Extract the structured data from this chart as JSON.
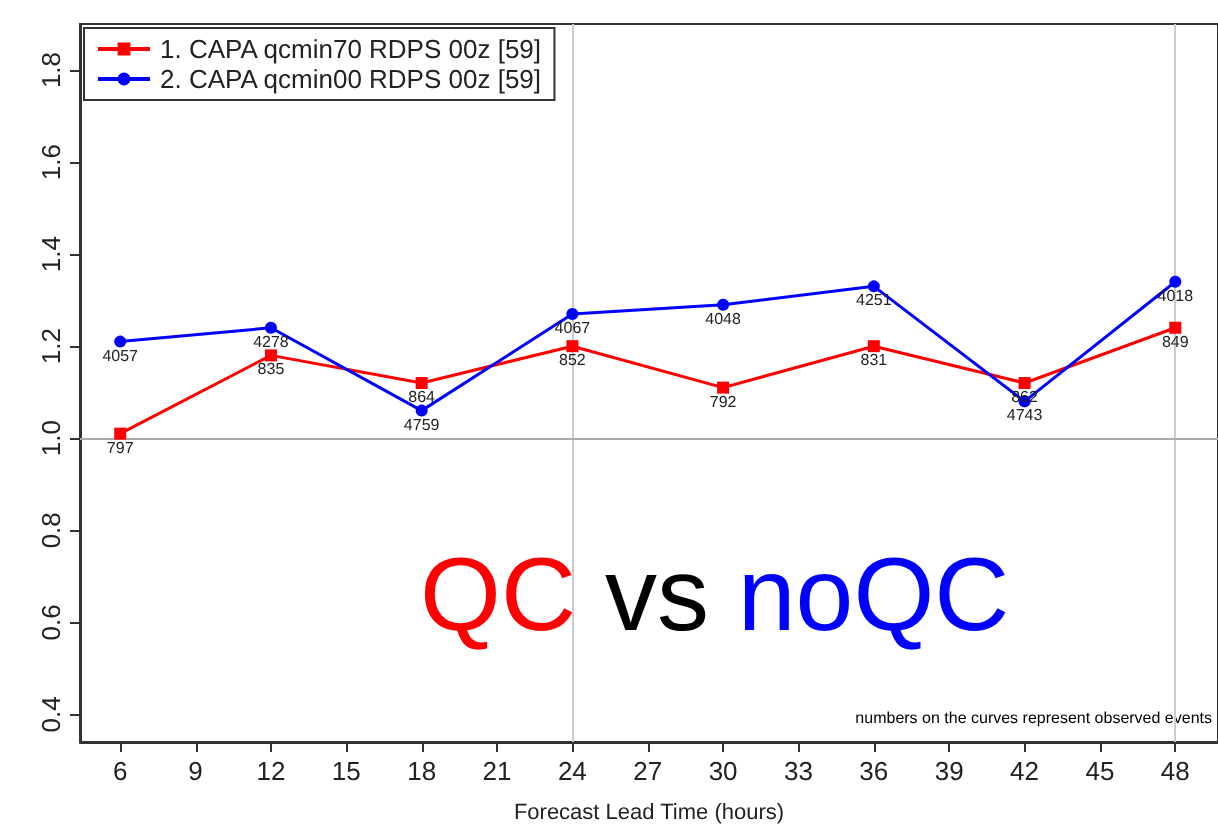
{
  "chart_data": {
    "type": "line",
    "xlabel": "Forecast Lead Time (hours)",
    "x": [
      6,
      12,
      18,
      24,
      30,
      36,
      42,
      48
    ],
    "series": [
      {
        "name": "1. CAPA qcmin70 RDPS 00z [59]",
        "color": "#ff0000",
        "marker": "square",
        "values": [
          1.01,
          1.18,
          1.12,
          1.2,
          1.11,
          1.2,
          1.12,
          1.24
        ]
      },
      {
        "name": "2. CAPA qcmin00 RDPS 00z [59]",
        "color": "#0000ff",
        "marker": "circle",
        "values": [
          1.21,
          1.24,
          1.06,
          1.27,
          1.29,
          1.33,
          1.08,
          1.34
        ]
      }
    ],
    "xlim": [
      4.4,
      49.7
    ],
    "xticks": [
      6,
      9,
      12,
      15,
      18,
      21,
      24,
      27,
      30,
      33,
      36,
      39,
      42,
      45,
      48
    ],
    "ylim": [
      0.34,
      1.9
    ],
    "yticks": [
      {
        "value": 0.4,
        "label": "0.4"
      },
      {
        "value": 0.6,
        "label": "0.6"
      },
      {
        "value": 0.8,
        "label": "0.8"
      },
      {
        "value": 1.0,
        "label": "1.0"
      },
      {
        "value": 1.2,
        "label": "1.2"
      },
      {
        "value": 1.4,
        "label": "1.4"
      },
      {
        "value": 1.6,
        "label": "1.6"
      },
      {
        "value": 1.8,
        "label": "1.8"
      }
    ],
    "ref_lines": [
      {
        "axis": "x",
        "value": 24,
        "color": "#cccccc"
      },
      {
        "axis": "x",
        "value": 48,
        "color": "#cccccc"
      },
      {
        "axis": "y",
        "value": 1.0,
        "color": "#aaaaaa"
      }
    ],
    "annotations": [
      "QC",
      "vs",
      "noQC",
      "numbers on the curves represent observed events",
      {
        "text": "797",
        "x": 6,
        "y": 1.01
      },
      {
        "text": "835",
        "x": 12,
        "y": 1.18
      },
      {
        "text": "864",
        "x": 18,
        "y": 1.12
      },
      {
        "text": "852",
        "x": 24,
        "y": 1.2
      },
      {
        "text": "792",
        "x": 30,
        "y": 1.11
      },
      {
        "text": "831",
        "x": 36,
        "y": 1.2
      },
      {
        "text": "862",
        "x": 42,
        "y": 1.12
      },
      {
        "text": "849",
        "x": 48,
        "y": 1.24
      },
      {
        "text": "4057",
        "x": 6,
        "y": 1.21
      },
      {
        "text": "4278",
        "x": 12,
        "y": 1.24
      },
      {
        "text": "4759",
        "x": 18,
        "y": 1.06
      },
      {
        "text": "4067",
        "x": 24,
        "y": 1.27
      },
      {
        "text": "4048",
        "x": 30,
        "y": 1.29
      },
      {
        "text": "4251",
        "x": 36,
        "y": 1.33
      },
      {
        "text": "4743",
        "x": 42,
        "y": 1.08
      },
      {
        "text": "4018",
        "x": 48,
        "y": 1.34
      }
    ],
    "legend": "top left",
    "grid": false,
    "line_style": "solid"
  }
}
